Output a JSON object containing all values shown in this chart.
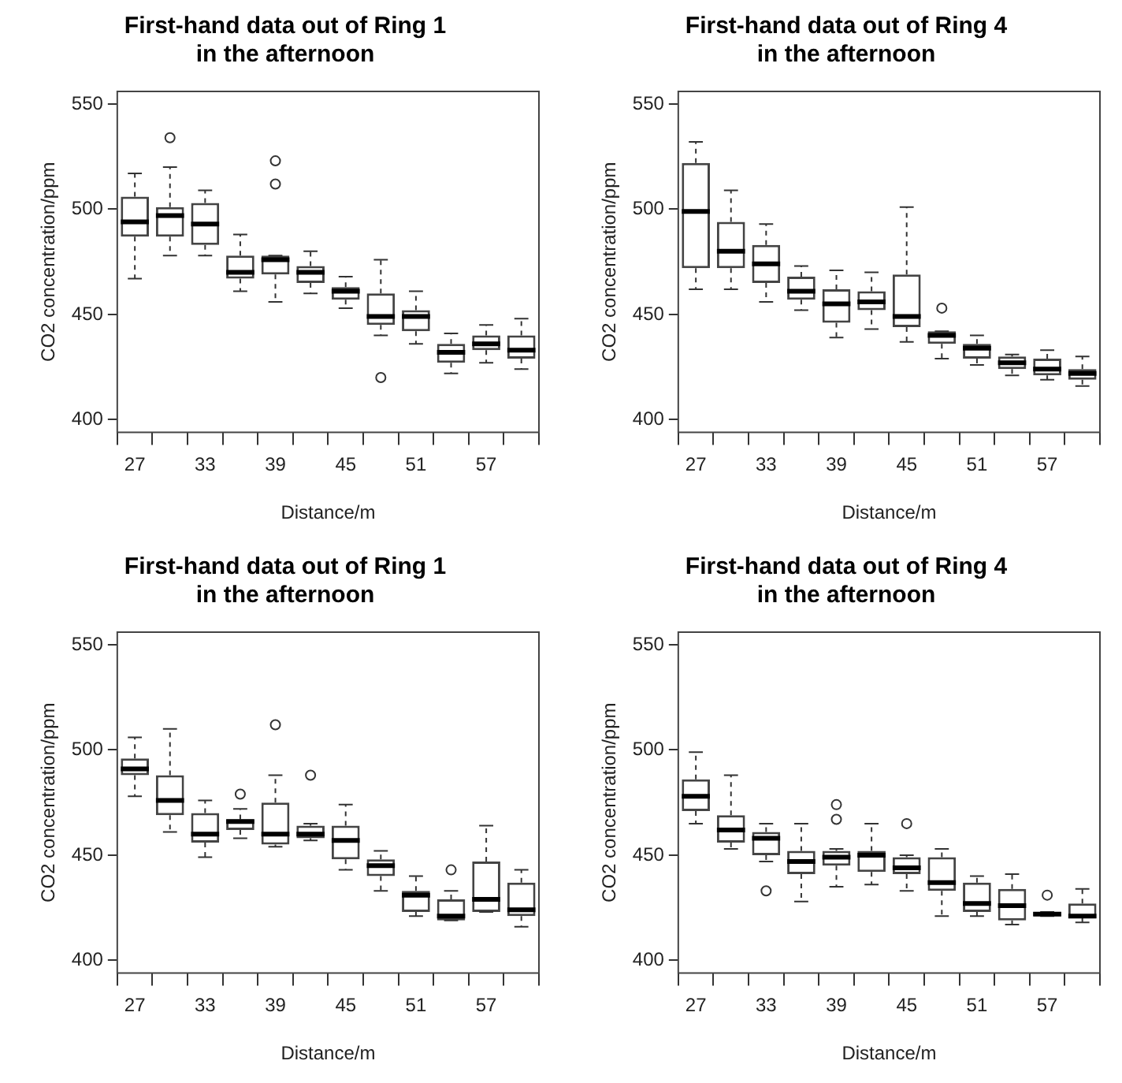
{
  "chart_data": [
    {
      "type": "box",
      "title": "First-hand data out of Ring 1\nin the afternoon",
      "xlabel": "Distance/m",
      "ylabel": "CO2 concentration/ppm",
      "categories": [
        "27",
        null,
        "33",
        null,
        "39",
        null,
        "45",
        null,
        "51",
        null,
        "57",
        null
      ],
      "ylim": [
        394,
        556
      ],
      "yticks": [
        400,
        450,
        500,
        550
      ],
      "boxes": [
        {
          "low": 467,
          "q1": 487,
          "median": 494,
          "q3": 506,
          "high": 517
        },
        {
          "low": 478,
          "q1": 487,
          "median": 497,
          "q3": 501,
          "high": 520,
          "outliers": [
            534
          ]
        },
        {
          "low": 478,
          "q1": 483,
          "median": 493,
          "q3": 503,
          "high": 509
        },
        {
          "low": 461,
          "q1": 467,
          "median": 470,
          "q3": 478,
          "high": 488
        },
        {
          "low": 456,
          "q1": 469,
          "median": 476,
          "q3": 478,
          "high": 478,
          "outliers": [
            512,
            523
          ]
        },
        {
          "low": 460,
          "q1": 465,
          "median": 470,
          "q3": 473,
          "high": 480
        },
        {
          "low": 453,
          "q1": 457,
          "median": 461,
          "q3": 463,
          "high": 468
        },
        {
          "low": 440,
          "q1": 445,
          "median": 449,
          "q3": 460,
          "high": 476,
          "outliers": [
            420
          ]
        },
        {
          "low": 436,
          "q1": 442,
          "median": 449,
          "q3": 452,
          "high": 461
        },
        {
          "low": 422,
          "q1": 427,
          "median": 432,
          "q3": 436,
          "high": 441
        },
        {
          "low": 427,
          "q1": 433,
          "median": 436,
          "q3": 440,
          "high": 445
        },
        {
          "low": 424,
          "q1": 429,
          "median": 433,
          "q3": 440,
          "high": 448
        }
      ]
    },
    {
      "type": "box",
      "title": "First-hand data out of Ring 4\nin the afternoon",
      "xlabel": "Distance/m",
      "ylabel": "CO2 concentration/ppm",
      "categories": [
        "27",
        null,
        "33",
        null,
        "39",
        null,
        "45",
        null,
        "51",
        null,
        "57",
        null
      ],
      "ylim": [
        394,
        556
      ],
      "yticks": [
        400,
        450,
        500,
        550
      ],
      "boxes": [
        {
          "low": 462,
          "q1": 472,
          "median": 499,
          "q3": 522,
          "high": 532
        },
        {
          "low": 462,
          "q1": 472,
          "median": 480,
          "q3": 494,
          "high": 509
        },
        {
          "low": 456,
          "q1": 465,
          "median": 474,
          "q3": 483,
          "high": 493
        },
        {
          "low": 452,
          "q1": 457,
          "median": 461,
          "q3": 468,
          "high": 473
        },
        {
          "low": 439,
          "q1": 446,
          "median": 455,
          "q3": 462,
          "high": 471
        },
        {
          "low": 443,
          "q1": 452,
          "median": 456,
          "q3": 461,
          "high": 470
        },
        {
          "low": 437,
          "q1": 444,
          "median": 449,
          "q3": 469,
          "high": 501
        },
        {
          "low": 429,
          "q1": 436,
          "median": 440,
          "q3": 442,
          "high": 442,
          "outliers": [
            453
          ]
        },
        {
          "low": 426,
          "q1": 429,
          "median": 434,
          "q3": 436,
          "high": 440
        },
        {
          "low": 421,
          "q1": 424,
          "median": 427,
          "q3": 430,
          "high": 431
        },
        {
          "low": 419,
          "q1": 421,
          "median": 424,
          "q3": 429,
          "high": 433
        },
        {
          "low": 416,
          "q1": 419,
          "median": 422,
          "q3": 424,
          "high": 430
        }
      ]
    },
    {
      "type": "box",
      "title": "First-hand data out of Ring 1\nin the afternoon",
      "xlabel": "Distance/m",
      "ylabel": "CO2 concentration/ppm",
      "categories": [
        "27",
        null,
        "33",
        null,
        "39",
        null,
        "45",
        null,
        "51",
        null,
        "57",
        null
      ],
      "ylim": [
        394,
        556
      ],
      "yticks": [
        400,
        450,
        500,
        550
      ],
      "boxes": [
        {
          "low": 478,
          "q1": 488,
          "median": 491,
          "q3": 496,
          "high": 506
        },
        {
          "low": 461,
          "q1": 469,
          "median": 476,
          "q3": 488,
          "high": 510
        },
        {
          "low": 449,
          "q1": 456,
          "median": 460,
          "q3": 470,
          "high": 476
        },
        {
          "low": 458,
          "q1": 462,
          "median": 466,
          "q3": 467,
          "high": 472,
          "outliers": [
            479
          ]
        },
        {
          "low": 454,
          "q1": 455,
          "median": 460,
          "q3": 475,
          "high": 488,
          "outliers": [
            512
          ]
        },
        {
          "low": 457,
          "q1": 458,
          "median": 460,
          "q3": 464,
          "high": 465,
          "outliers": [
            488
          ]
        },
        {
          "low": 443,
          "q1": 448,
          "median": 457,
          "q3": 464,
          "high": 474
        },
        {
          "low": 433,
          "q1": 440,
          "median": 445,
          "q3": 448,
          "high": 452
        },
        {
          "low": 421,
          "q1": 423,
          "median": 431,
          "q3": 433,
          "high": 440
        },
        {
          "low": 419,
          "q1": 419,
          "median": 421,
          "q3": 429,
          "high": 433,
          "outliers": [
            443
          ]
        },
        {
          "low": 423,
          "q1": 423,
          "median": 429,
          "q3": 447,
          "high": 464
        },
        {
          "low": 416,
          "q1": 421,
          "median": 424,
          "q3": 437,
          "high": 443
        }
      ]
    },
    {
      "type": "box",
      "title": "First-hand data out of Ring 4\nin the afternoon",
      "xlabel": "Distance/m",
      "ylabel": "CO2 concentration/ppm",
      "categories": [
        "27",
        null,
        "33",
        null,
        "39",
        null,
        "45",
        null,
        "51",
        null,
        "57",
        null
      ],
      "ylim": [
        394,
        556
      ],
      "yticks": [
        400,
        450,
        500,
        550
      ],
      "boxes": [
        {
          "low": 465,
          "q1": 471,
          "median": 478,
          "q3": 486,
          "high": 499
        },
        {
          "low": 453,
          "q1": 456,
          "median": 462,
          "q3": 469,
          "high": 488
        },
        {
          "low": 447,
          "q1": 450,
          "median": 458,
          "q3": 461,
          "high": 465,
          "outliers": [
            433
          ]
        },
        {
          "low": 428,
          "q1": 441,
          "median": 447,
          "q3": 452,
          "high": 465
        },
        {
          "low": 435,
          "q1": 445,
          "median": 449,
          "q3": 452,
          "high": 453,
          "outliers": [
            467,
            474
          ]
        },
        {
          "low": 436,
          "q1": 442,
          "median": 450,
          "q3": 452,
          "high": 465
        },
        {
          "low": 433,
          "q1": 441,
          "median": 444,
          "q3": 449,
          "high": 450,
          "outliers": [
            465
          ]
        },
        {
          "low": 421,
          "q1": 433,
          "median": 437,
          "q3": 449,
          "high": 453
        },
        {
          "low": 421,
          "q1": 423,
          "median": 427,
          "q3": 437,
          "high": 440
        },
        {
          "low": 417,
          "q1": 419,
          "median": 426,
          "q3": 434,
          "high": 441
        },
        {
          "low": 421,
          "q1": 421,
          "median": 422,
          "q3": 423,
          "high": 423,
          "outliers": [
            431
          ]
        },
        {
          "low": 418,
          "q1": 420,
          "median": 421,
          "q3": 427,
          "high": 434
        }
      ]
    }
  ]
}
